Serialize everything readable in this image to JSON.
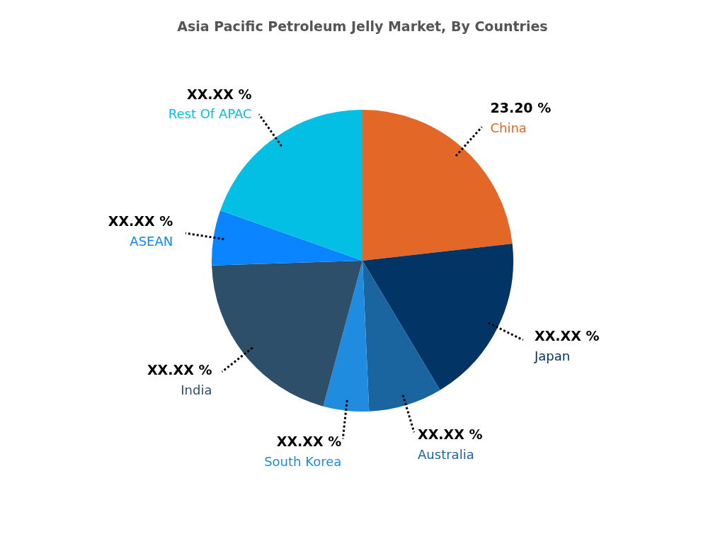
{
  "chart_data": {
    "type": "pie",
    "title": "Asia Pacific Petroleum Jelly Market, By Countries",
    "categories": [
      "China",
      "Japan",
      "Australia",
      "South Korea",
      "India",
      "ASEAN",
      "Rest Of APAC"
    ],
    "values": [
      23.2,
      18.2,
      7.9,
      4.9,
      20.3,
      5.9,
      19.6
    ],
    "colors": [
      "#e36726",
      "#023565",
      "#1a65a0",
      "#1f8ce0",
      "#2e4f6a",
      "#0a84ff",
      "#03bfe3"
    ],
    "value_labels": [
      "23.20 %",
      "XX.XX %",
      "XX.XX %",
      "XX.XX %",
      "XX.XX %",
      "XX.XX %",
      "XX.XX %"
    ],
    "legend": false
  }
}
